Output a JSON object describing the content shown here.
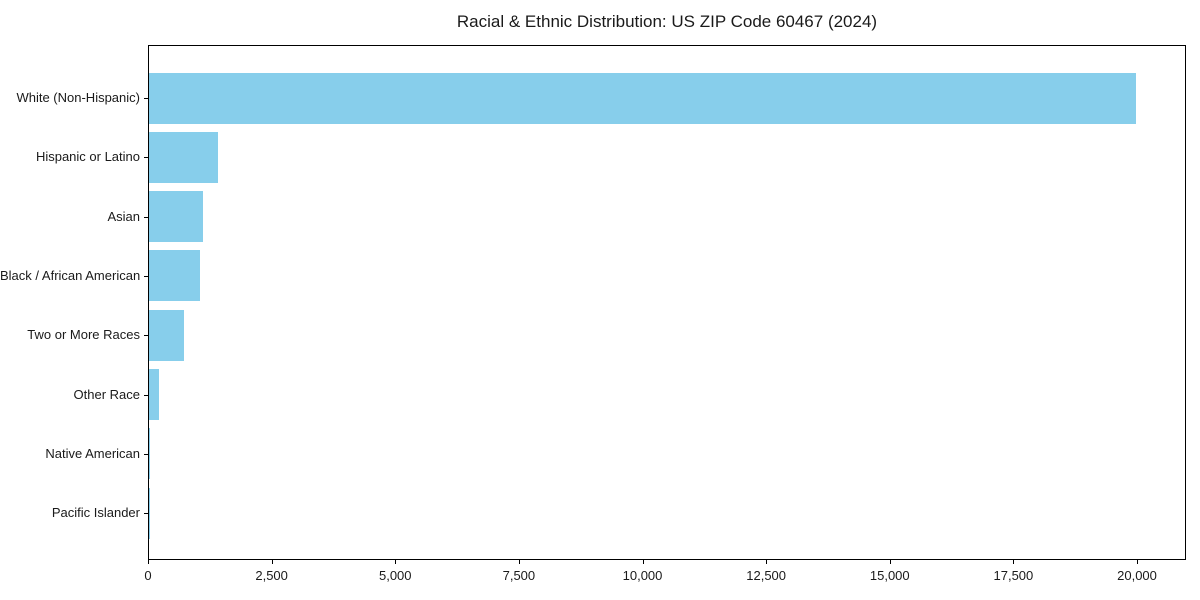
{
  "chart_data": {
    "type": "bar",
    "orientation": "horizontal",
    "title": "Racial & Ethnic Distribution: US ZIP Code 60467 (2024)",
    "categories": [
      "White (Non-Hispanic)",
      "Hispanic or Latino",
      "Asian",
      "Black / African American",
      "Two or More Races",
      "Other Race",
      "Native American",
      "Pacific Islander"
    ],
    "values": [
      19950,
      1400,
      1100,
      1040,
      700,
      210,
      12,
      4
    ],
    "xlabel": "",
    "ylabel": "",
    "xlim": [
      0,
      20950
    ],
    "x_ticks": [
      0,
      2500,
      5000,
      7500,
      10000,
      12500,
      15000,
      17500,
      20000
    ],
    "x_tick_labels": [
      "0",
      "2,500",
      "5,000",
      "7,500",
      "10,000",
      "12,500",
      "15,000",
      "17,500",
      "20,000"
    ],
    "grid": false,
    "legend": null,
    "bar_color": "#87ceeb",
    "text_color": "#1a1a1a",
    "spine_color": "#000000"
  }
}
